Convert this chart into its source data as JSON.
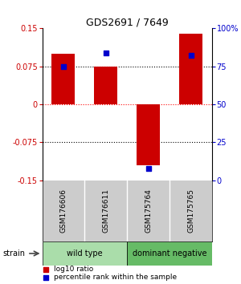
{
  "title": "GDS2691 / 7649",
  "samples": [
    "GSM176606",
    "GSM176611",
    "GSM175764",
    "GSM175765"
  ],
  "log10_ratio": [
    0.1,
    0.075,
    -0.12,
    0.14
  ],
  "percentile_rank": [
    75.0,
    84.0,
    8.0,
    82.0
  ],
  "ylim_left": [
    -0.15,
    0.15
  ],
  "ylim_right": [
    0,
    100
  ],
  "yticks_left": [
    -0.15,
    -0.075,
    0,
    0.075,
    0.15
  ],
  "yticks_right": [
    0,
    25,
    50,
    75,
    100
  ],
  "ytick_labels_left": [
    "-0.15",
    "-0.075",
    "0",
    "0.075",
    "0.15"
  ],
  "ytick_labels_right": [
    "0",
    "25",
    "50",
    "75",
    "100%"
  ],
  "hlines_black": [
    0.075,
    -0.075
  ],
  "hline_red": 0.0,
  "bar_color": "#cc0000",
  "dot_color": "#0000cc",
  "groups": [
    {
      "label": "wild type",
      "samples": [
        0,
        1
      ],
      "color": "#aaddaa"
    },
    {
      "label": "dominant negative",
      "samples": [
        2,
        3
      ],
      "color": "#66bb66"
    }
  ],
  "legend_bar_label": "log10 ratio",
  "legend_dot_label": "percentile rank within the sample",
  "strain_label": "strain",
  "left_axis_color": "#cc0000",
  "right_axis_color": "#0000cc",
  "sample_box_color": "#cccccc",
  "bar_width": 0.55,
  "dot_size": 25
}
